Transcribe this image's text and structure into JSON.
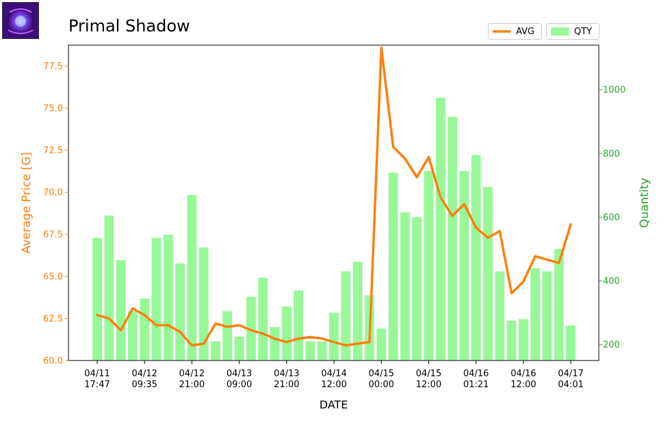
{
  "title": "Primal Shadow",
  "icon_name": "primal-shadow-item-icon",
  "colors": {
    "avg": "#ff7f0e",
    "qty": "#98f898",
    "qty_axis": "#2ca02c",
    "avg_axis": "#ff7f0e"
  },
  "legend": {
    "avg_label": "AVG",
    "qty_label": "QTY"
  },
  "chart_data": {
    "type": "bar+line",
    "xlabel": "DATE",
    "ylabel_left": "Average Price [G]",
    "ylabel_right": "Quantity",
    "ylim_left": [
      60.0,
      78.75
    ],
    "ylim_right": [
      150,
      1140
    ],
    "yticks_left": [
      "60.0",
      "62.5",
      "65.0",
      "67.5",
      "70.0",
      "72.5",
      "75.0",
      "77.5"
    ],
    "yticks_right": [
      "200",
      "400",
      "600",
      "800",
      "1000"
    ],
    "x_ticks": [
      {
        "index": 0,
        "line1": "04/11",
        "line2": "17:47"
      },
      {
        "index": 4,
        "line1": "04/12",
        "line2": "09:35"
      },
      {
        "index": 8,
        "line1": "04/12",
        "line2": "21:00"
      },
      {
        "index": 12,
        "line1": "04/13",
        "line2": "09:00"
      },
      {
        "index": 16,
        "line1": "04/13",
        "line2": "21:00"
      },
      {
        "index": 20,
        "line1": "04/14",
        "line2": "12:00"
      },
      {
        "index": 24,
        "line1": "04/15",
        "line2": "00:00"
      },
      {
        "index": 28,
        "line1": "04/15",
        "line2": "12:00"
      },
      {
        "index": 32,
        "line1": "04/16",
        "line2": "01:21"
      },
      {
        "index": 36,
        "line1": "04/16",
        "line2": "12:00"
      },
      {
        "index": 40,
        "line1": "04/17",
        "line2": "04:01"
      }
    ],
    "series": [
      {
        "name": "AVG",
        "type": "line",
        "axis": "left",
        "values": [
          62.7,
          62.5,
          61.8,
          63.1,
          62.7,
          62.1,
          62.1,
          61.7,
          60.9,
          61.0,
          62.2,
          62.0,
          62.1,
          61.8,
          61.6,
          61.3,
          61.1,
          61.3,
          61.4,
          61.3,
          61.1,
          60.9,
          61.0,
          61.1,
          78.6,
          72.7,
          72.0,
          70.9,
          72.1,
          69.7,
          68.6,
          69.3,
          67.9,
          67.3,
          67.7,
          64.0,
          64.7,
          66.2,
          66.0,
          65.8,
          68.1
        ]
      },
      {
        "name": "QTY",
        "type": "bar",
        "axis": "right",
        "values": [
          535,
          605,
          465,
          305,
          345,
          535,
          545,
          455,
          670,
          505,
          210,
          305,
          225,
          350,
          410,
          255,
          320,
          370,
          210,
          210,
          300,
          430,
          460,
          355,
          250,
          740,
          615,
          600,
          745,
          975,
          915,
          745,
          795,
          695,
          430,
          275,
          280,
          440,
          430,
          500,
          260
        ]
      }
    ]
  }
}
